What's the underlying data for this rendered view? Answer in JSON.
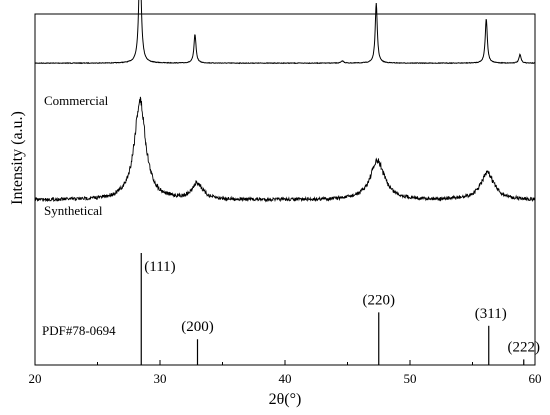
{
  "chart_data": {
    "type": "line",
    "xlabel": "2θ(°)",
    "ylabel": "Intensity (a.u.)",
    "xlim": [
      20,
      60
    ],
    "x_ticks": [
      "20",
      "30",
      "40",
      "50",
      "60"
    ],
    "grid": false,
    "y_ticks_labeled": false,
    "series": [
      {
        "name": "Commercial",
        "baseline": 0.86,
        "peaks": [
          {
            "x": 28.4,
            "height": 1.0
          },
          {
            "x": 32.8,
            "height": 0.27
          },
          {
            "x": 44.6,
            "height": 0.02
          },
          {
            "x": 47.3,
            "height": 0.56
          },
          {
            "x": 56.1,
            "height": 0.42
          },
          {
            "x": 58.8,
            "height": 0.08
          }
        ]
      },
      {
        "name": "Synthetical",
        "baseline": 0.47,
        "peaks": [
          {
            "x": 28.4,
            "height": 1.0
          },
          {
            "x": 33.0,
            "height": 0.16
          },
          {
            "x": 47.4,
            "height": 0.39
          },
          {
            "x": 56.2,
            "height": 0.27
          }
        ]
      }
    ],
    "reference": {
      "name": "PDF#78-0694",
      "lines": [
        {
          "x": 28.5,
          "intensity": 1.0,
          "hkl": "(111)"
        },
        {
          "x": 33.0,
          "intensity": 0.23,
          "hkl": "(200)"
        },
        {
          "x": 47.5,
          "intensity": 0.47,
          "hkl": "(220)"
        },
        {
          "x": 56.3,
          "intensity": 0.35,
          "hkl": "(311)"
        },
        {
          "x": 59.1,
          "intensity": 0.05,
          "hkl": "(222)"
        }
      ]
    }
  }
}
